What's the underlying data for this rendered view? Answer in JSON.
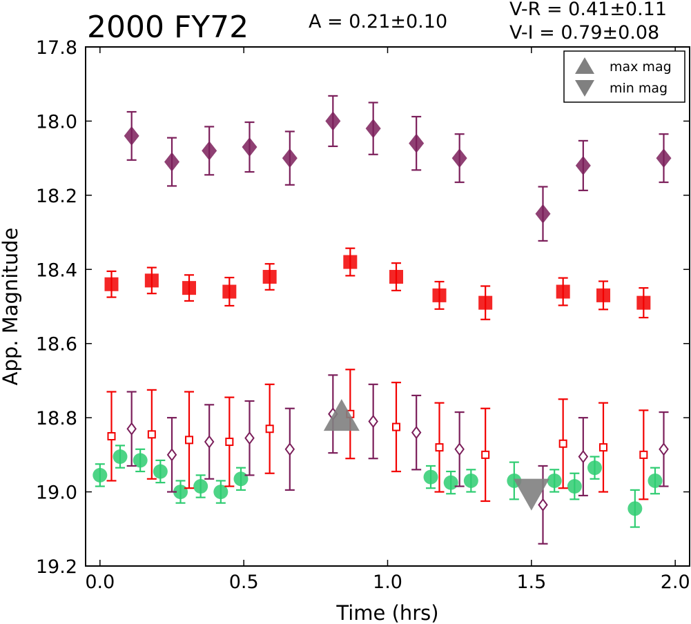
{
  "chart_data": {
    "type": "scatter",
    "title": "2000 FY72",
    "annotations": {
      "amplitude": "A  = 0.21±0.10",
      "v_r": "V-R = 0.41±0.11",
      "v_i": "V-I  = 0.79±0.08"
    },
    "xlabel": "Time (hrs)",
    "ylabel": "App. Magnitude",
    "xlim": [
      -0.05,
      2.05
    ],
    "ylim": [
      19.2,
      17.8
    ],
    "y_inverted": true,
    "x_ticks": [
      0.0,
      0.5,
      1.0,
      1.5,
      2.0
    ],
    "x_tick_labels": [
      "0.0",
      "0.5",
      "1.0",
      "1.5",
      "2.0"
    ],
    "y_ticks": [
      17.8,
      18.0,
      18.2,
      18.4,
      18.6,
      18.8,
      19.0,
      19.2
    ],
    "y_tick_labels": [
      "17.8",
      "18.0",
      "18.2",
      "18.4",
      "18.6",
      "18.8",
      "19.0",
      "19.2"
    ],
    "grid": false,
    "legend": {
      "placement": "top-right",
      "entries": [
        {
          "label": "max mag",
          "marker": "triangle-up",
          "color": "#808080"
        },
        {
          "label": "min mag",
          "marker": "triangle-down",
          "color": "#808080"
        }
      ]
    },
    "series": [
      {
        "band": "I",
        "marker": "diamond-filled",
        "color": "#7b1e5a",
        "x": [
          0.11,
          0.25,
          0.38,
          0.52,
          0.66,
          0.81,
          0.95,
          1.1,
          1.25,
          1.54,
          1.68,
          1.96
        ],
        "y": [
          18.04,
          18.11,
          18.08,
          18.07,
          18.1,
          18.0,
          18.02,
          18.06,
          18.1,
          18.25,
          18.12,
          18.1
        ],
        "err": [
          0.065,
          0.065,
          0.065,
          0.067,
          0.072,
          0.068,
          0.07,
          0.072,
          0.065,
          0.073,
          0.067,
          0.065
        ]
      },
      {
        "band": "R",
        "marker": "square-filled",
        "color": "#f20000",
        "x": [
          0.04,
          0.18,
          0.31,
          0.45,
          0.59,
          0.87,
          1.03,
          1.18,
          1.34,
          1.61,
          1.75,
          1.89
        ],
        "y": [
          18.44,
          18.43,
          18.45,
          18.46,
          18.42,
          18.38,
          18.42,
          18.47,
          18.49,
          18.46,
          18.47,
          18.49
        ],
        "err": [
          0.035,
          0.035,
          0.035,
          0.038,
          0.035,
          0.037,
          0.037,
          0.037,
          0.045,
          0.037,
          0.038,
          0.04
        ]
      },
      {
        "band": "V",
        "marker": "circle-filled",
        "color": "#2ecc71",
        "x": [
          0.0,
          0.07,
          0.14,
          0.21,
          0.28,
          0.35,
          0.42,
          0.49,
          1.15,
          1.22,
          1.29,
          1.44,
          1.58,
          1.65,
          1.72,
          1.86,
          1.93
        ],
        "y": [
          18.955,
          18.905,
          18.915,
          18.945,
          19.0,
          18.985,
          19.0,
          18.965,
          18.96,
          18.975,
          18.97,
          18.97,
          18.97,
          18.985,
          18.935,
          19.045,
          18.97
        ],
        "err": [
          0.03,
          0.03,
          0.03,
          0.03,
          0.03,
          0.03,
          0.03,
          0.03,
          0.03,
          0.03,
          0.03,
          0.05,
          0.03,
          0.035,
          0.03,
          0.05,
          0.035
        ]
      },
      {
        "band": "I-shifted",
        "marker": "diamond-open",
        "color": "#7b1e5a",
        "x": [
          0.11,
          0.25,
          0.38,
          0.52,
          0.66,
          0.81,
          0.95,
          1.1,
          1.25,
          1.54,
          1.68,
          1.96
        ],
        "y": [
          18.83,
          18.9,
          18.865,
          18.855,
          18.885,
          18.79,
          18.81,
          18.84,
          18.885,
          19.035,
          18.905,
          18.885
        ],
        "err": [
          0.1,
          0.1,
          0.1,
          0.1,
          0.11,
          0.105,
          0.1,
          0.1,
          0.1,
          0.105,
          0.105,
          0.1
        ]
      },
      {
        "band": "R-shifted",
        "marker": "square-open",
        "color": "#f20000",
        "x": [
          0.04,
          0.18,
          0.31,
          0.45,
          0.59,
          0.87,
          1.03,
          1.18,
          1.34,
          1.61,
          1.75,
          1.89
        ],
        "y": [
          18.85,
          18.845,
          18.86,
          18.865,
          18.83,
          18.79,
          18.825,
          18.88,
          18.9,
          18.87,
          18.88,
          18.9
        ],
        "err": [
          0.12,
          0.12,
          0.13,
          0.12,
          0.12,
          0.12,
          0.12,
          0.12,
          0.125,
          0.12,
          0.12,
          0.12
        ]
      }
    ],
    "extrema": {
      "max": {
        "x": 0.84,
        "y": 18.8,
        "marker": "triangle-up",
        "color": "#808080"
      },
      "min": {
        "x": 1.5,
        "y": 19.0,
        "marker": "triangle-down",
        "color": "#808080"
      }
    }
  }
}
